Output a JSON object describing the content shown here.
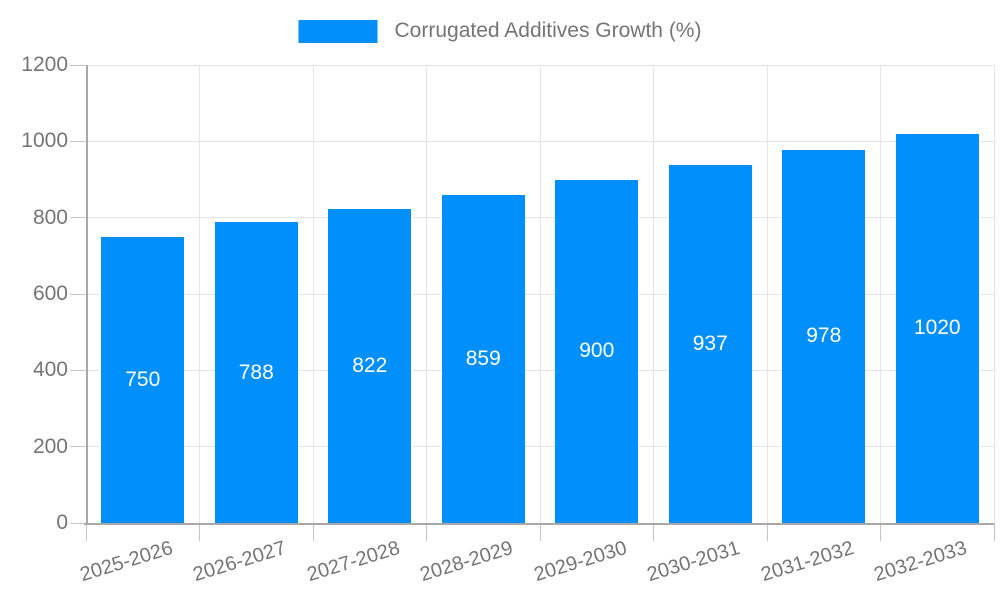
{
  "legend": {
    "label": "Corrugated Additives Growth (%)",
    "swatch_color": "#008FFB"
  },
  "chart_data": {
    "type": "bar",
    "title": "Corrugated Additives Growth (%)",
    "categories": [
      "2025-2026",
      "2026-2027",
      "2027-2028",
      "2028-2029",
      "2029-2030",
      "2030-2031",
      "2031-2032",
      "2032-2033"
    ],
    "series": [
      {
        "name": "Corrugated Additives Growth (%)",
        "values": [
          750,
          788,
          822,
          859,
          900,
          937,
          978,
          1020
        ]
      }
    ],
    "value_labels": [
      "750",
      "788",
      "822",
      "859",
      "900",
      "937",
      "978",
      "1020"
    ],
    "xlabel": "",
    "ylabel": "",
    "ylim": [
      0,
      1200
    ],
    "yticks": [
      0,
      200,
      400,
      600,
      800,
      1000,
      1200
    ],
    "grid": true,
    "legend_position": "top-center",
    "colors": {
      "bar": "#008FFB",
      "value_label": "#ffffff",
      "axis_text": "#757575",
      "grid_line": "#e6e6e6",
      "axis_line": "#a8a8a8",
      "tick": "#c4c4c4",
      "background": "#ffffff"
    }
  }
}
